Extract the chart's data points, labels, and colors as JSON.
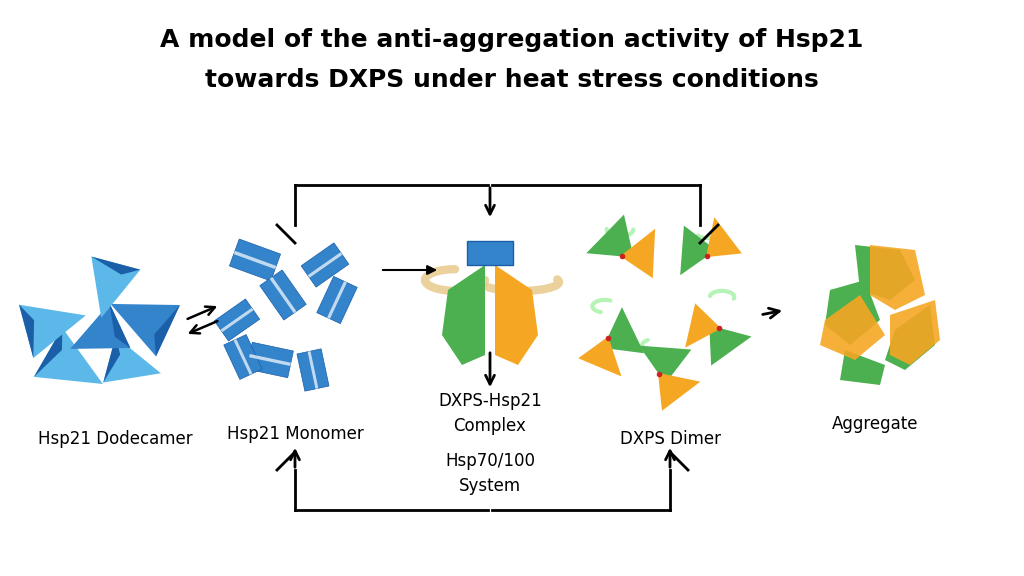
{
  "title_line1": "A model of the anti-aggregation activity of Hsp21",
  "title_line2": "towards DXPS under heat stress conditions",
  "title_fontsize": 18,
  "bg_color": "#ffffff",
  "labels": {
    "dodecamer": "Hsp21 Dodecamer",
    "monomer": "Hsp21 Monomer",
    "complex": "DXPS-Hsp21\nComplex",
    "hsp70": "Hsp70/100\nSystem",
    "dimer": "DXPS Dimer",
    "aggregate": "Aggregate"
  },
  "label_fontsize": 12,
  "blue_light": "#5BB8E8",
  "blue_dark": "#1A5FA8",
  "blue_mid": "#3484CC",
  "green_color": "#4CAF50",
  "orange_color": "#F5A623",
  "red_color": "#CC2222",
  "wheat_color": "#E8C98A",
  "green_light": "#90EE90"
}
